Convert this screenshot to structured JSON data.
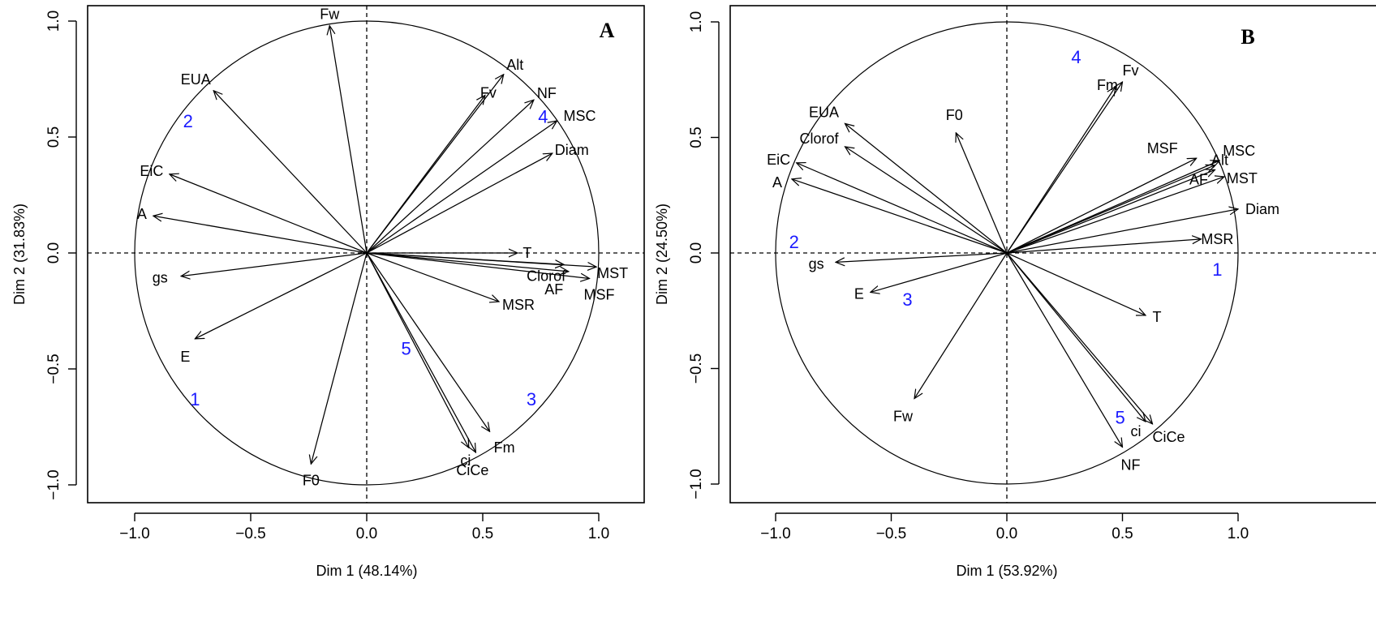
{
  "colors": {
    "ink": "#000000",
    "group_label": "#1a1aff"
  },
  "chart_data": [
    {
      "type": "scatter",
      "subtype": "pca-correlation-circle",
      "panel": "A",
      "xlabel": "Dim 1 (48.14%)",
      "ylabel": "Dim 2 (31.83%)",
      "xlim": [
        -1.2,
        1.2
      ],
      "ylim": [
        -1.08,
        1.08
      ],
      "xticks": [
        "−1.0",
        "−0.5",
        "0.0",
        "0.5",
        "1.0"
      ],
      "yticks": [
        "−1.0",
        "−0.5",
        "0.0",
        "0.5",
        "1.0"
      ],
      "xtick_values": [
        -1.0,
        -0.5,
        0.0,
        0.5,
        1.0
      ],
      "ytick_values": [
        -1.0,
        -0.5,
        0.0,
        0.5,
        1.0
      ],
      "grid": false,
      "arrows": [
        {
          "name": "Fw",
          "x": -0.16,
          "y": 0.98
        },
        {
          "name": "EUA",
          "x": -0.66,
          "y": 0.7
        },
        {
          "name": "EiC",
          "x": -0.85,
          "y": 0.34
        },
        {
          "name": "A",
          "x": -0.92,
          "y": 0.16
        },
        {
          "name": "gs",
          "x": -0.8,
          "y": -0.1
        },
        {
          "name": "E",
          "x": -0.74,
          "y": -0.37
        },
        {
          "name": "F0",
          "x": -0.24,
          "y": -0.91
        },
        {
          "name": "Alt",
          "x": 0.59,
          "y": 0.77
        },
        {
          "name": "Fv",
          "x": 0.51,
          "y": 0.68
        },
        {
          "name": "NF",
          "x": 0.72,
          "y": 0.66
        },
        {
          "name": "MSC",
          "x": 0.82,
          "y": 0.57
        },
        {
          "name": "Diam",
          "x": 0.8,
          "y": 0.43
        },
        {
          "name": "T",
          "x": 0.65,
          "y": 0.0
        },
        {
          "name": "MST",
          "x": 0.99,
          "y": -0.06
        },
        {
          "name": "Clorof",
          "x": 0.85,
          "y": -0.05
        },
        {
          "name": "AF",
          "x": 0.87,
          "y": -0.08
        },
        {
          "name": "MSF",
          "x": 0.96,
          "y": -0.11
        },
        {
          "name": "MSR",
          "x": 0.57,
          "y": -0.21
        },
        {
          "name": "Fm",
          "x": 0.53,
          "y": -0.77
        },
        {
          "name": "ci",
          "x": 0.44,
          "y": -0.84
        },
        {
          "name": "CiCe",
          "x": 0.47,
          "y": -0.86
        }
      ],
      "groups": [
        {
          "label": "1",
          "x": -0.74,
          "y": -0.63
        },
        {
          "label": "2",
          "x": -0.77,
          "y": 0.57
        },
        {
          "label": "3",
          "x": 0.71,
          "y": -0.63
        },
        {
          "label": "4",
          "x": 0.76,
          "y": 0.59
        },
        {
          "label": "5",
          "x": 0.17,
          "y": -0.41
        }
      ]
    },
    {
      "type": "scatter",
      "subtype": "pca-correlation-circle",
      "panel": "B",
      "xlabel": "Dim 1 (53.92%)",
      "ylabel": "Dim 2 (24.50%)",
      "xlim": [
        -1.2,
        1.2
      ],
      "ylim": [
        -1.08,
        1.08
      ],
      "xticks": [
        "−1.0",
        "−0.5",
        "0.0",
        "0.5",
        "1.0"
      ],
      "yticks": [
        "−1.0",
        "−0.5",
        "0.0",
        "0.5",
        "1.0"
      ],
      "xtick_values": [
        -1.0,
        -0.5,
        0.0,
        0.5,
        1.0
      ],
      "ytick_values": [
        -1.0,
        -0.5,
        0.0,
        0.5,
        1.0
      ],
      "grid": false,
      "arrows": [
        {
          "name": "Fv",
          "x": 0.5,
          "y": 0.74
        },
        {
          "name": "Fm",
          "x": 0.47,
          "y": 0.72
        },
        {
          "name": "EUA",
          "x": -0.7,
          "y": 0.56
        },
        {
          "name": "F0",
          "x": -0.22,
          "y": 0.52
        },
        {
          "name": "Clorof",
          "x": -0.7,
          "y": 0.46
        },
        {
          "name": "EiC",
          "x": -0.91,
          "y": 0.39
        },
        {
          "name": "A",
          "x": -0.93,
          "y": 0.32
        },
        {
          "name": "MSF",
          "x": 0.82,
          "y": 0.41
        },
        {
          "name": "Alt",
          "x": 0.9,
          "y": 0.38
        },
        {
          "name": "MSC",
          "x": 0.92,
          "y": 0.4
        },
        {
          "name": "AF",
          "x": 0.9,
          "y": 0.36
        },
        {
          "name": "MST",
          "x": 0.94,
          "y": 0.33
        },
        {
          "name": "Diam",
          "x": 1.0,
          "y": 0.19
        },
        {
          "name": "MSR",
          "x": 0.84,
          "y": 0.06
        },
        {
          "name": "gs",
          "x": -0.74,
          "y": -0.04
        },
        {
          "name": "E",
          "x": -0.59,
          "y": -0.17
        },
        {
          "name": "T",
          "x": 0.6,
          "y": -0.27
        },
        {
          "name": "Fw",
          "x": -0.4,
          "y": -0.63
        },
        {
          "name": "ci",
          "x": 0.6,
          "y": -0.73
        },
        {
          "name": "CiCe",
          "x": 0.63,
          "y": -0.74
        },
        {
          "name": "NF",
          "x": 0.5,
          "y": -0.84
        }
      ],
      "groups": [
        {
          "label": "1",
          "x": 0.91,
          "y": -0.07
        },
        {
          "label": "2",
          "x": -0.92,
          "y": 0.05
        },
        {
          "label": "3",
          "x": -0.43,
          "y": -0.2
        },
        {
          "label": "4",
          "x": 0.3,
          "y": 0.85
        },
        {
          "label": "5",
          "x": 0.49,
          "y": -0.71
        }
      ]
    }
  ]
}
